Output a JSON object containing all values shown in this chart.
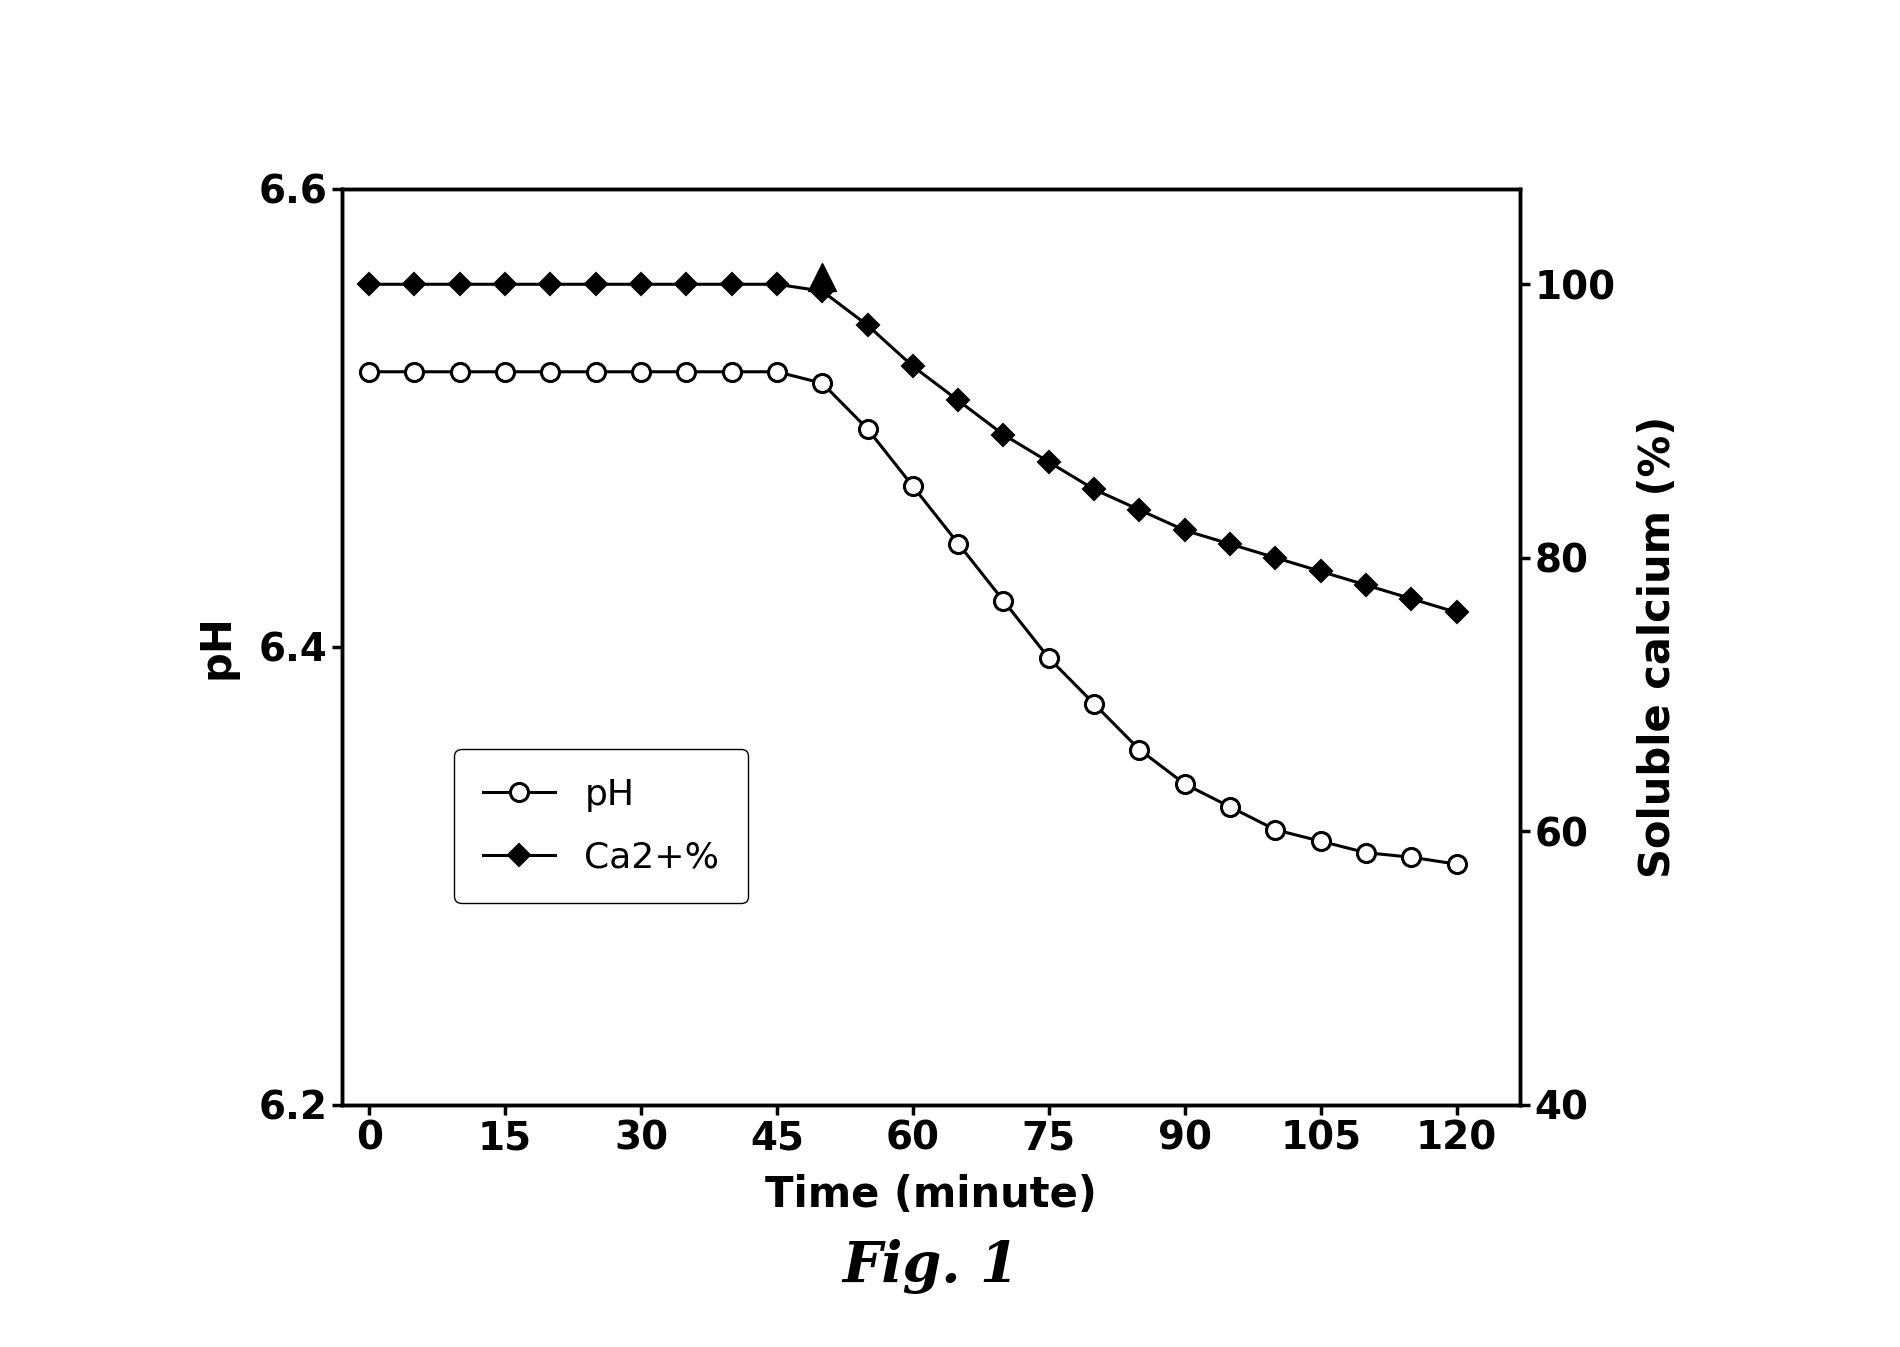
{
  "time_ph": [
    0,
    5,
    10,
    15,
    20,
    25,
    30,
    35,
    40,
    45,
    50,
    55,
    60,
    65,
    70,
    75,
    80,
    85,
    90,
    95,
    100,
    105,
    110,
    115,
    120
  ],
  "ph_values": [
    6.52,
    6.52,
    6.52,
    6.52,
    6.52,
    6.52,
    6.52,
    6.52,
    6.52,
    6.52,
    6.515,
    6.495,
    6.47,
    6.445,
    6.42,
    6.395,
    6.375,
    6.355,
    6.34,
    6.33,
    6.32,
    6.315,
    6.31,
    6.308,
    6.305
  ],
  "time_ca": [
    0,
    5,
    10,
    15,
    20,
    25,
    30,
    35,
    40,
    45,
    50,
    55,
    60,
    65,
    70,
    75,
    80,
    85,
    90,
    95,
    100,
    105,
    110,
    115,
    120
  ],
  "ca_values": [
    100,
    100,
    100,
    100,
    100,
    100,
    100,
    100,
    100,
    100,
    99.5,
    97,
    94,
    91.5,
    89,
    87,
    85,
    83.5,
    82,
    81,
    80,
    79,
    78,
    77,
    76
  ],
  "triangle_time": 50,
  "triangle_ca": 100.5,
  "ph_ylim": [
    6.2,
    6.6
  ],
  "ca_ylim": [
    40,
    107
  ],
  "xticks": [
    0,
    15,
    30,
    45,
    60,
    75,
    90,
    105,
    120
  ],
  "ph_yticks": [
    6.2,
    6.4,
    6.6
  ],
  "ca_yticks": [
    40,
    60,
    80,
    100
  ],
  "xlabel": "Time (minute)",
  "ylabel_left": "pH",
  "ylabel_right": "Soluble calcium (%)",
  "legend_ph": "pH",
  "legend_ca": "Ca2+%",
  "fig_title": "Fig. 1",
  "line_color": "black",
  "marker_size_circle": 13,
  "marker_size_diamond": 11,
  "linewidth": 2.2,
  "background_color": "#ffffff"
}
